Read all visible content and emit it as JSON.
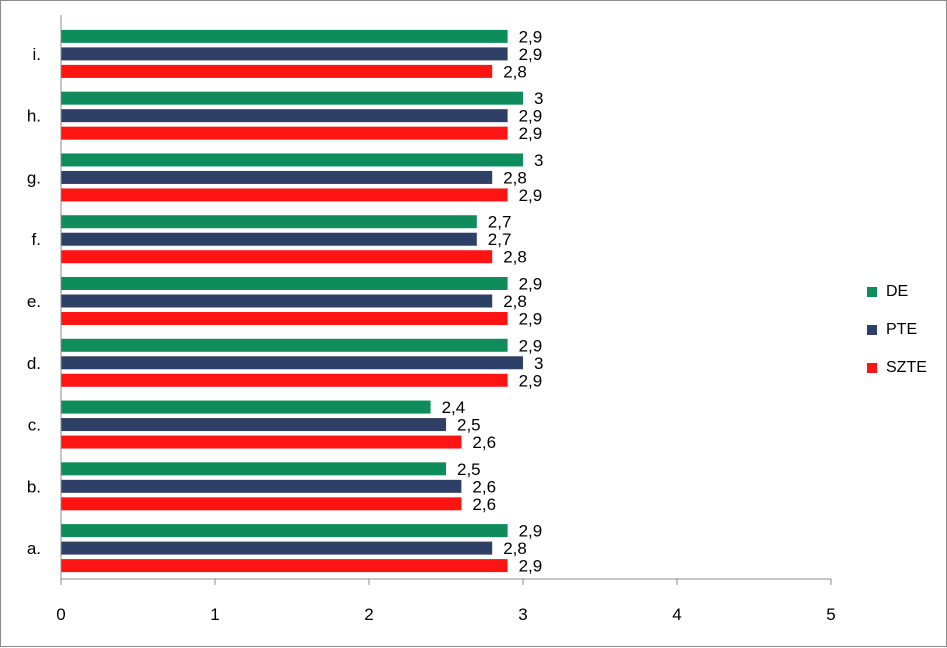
{
  "chart_data": {
    "type": "bar",
    "orientation": "horizontal",
    "categories": [
      "a.",
      "b.",
      "c.",
      "d.",
      "e.",
      "f.",
      "g.",
      "h.",
      "i."
    ],
    "series": [
      {
        "name": "DE",
        "color": "#0e8c5c",
        "values": [
          2.9,
          2.5,
          2.4,
          2.9,
          2.9,
          2.7,
          3,
          3,
          2.9
        ],
        "labels": [
          "2,9",
          "2,5",
          "2,4",
          "2,9",
          "2,9",
          "2,7",
          "3",
          "3",
          "2,9"
        ]
      },
      {
        "name": "PTE",
        "color": "#2f4067",
        "values": [
          2.8,
          2.6,
          2.5,
          3,
          2.8,
          2.7,
          2.8,
          2.9,
          2.9
        ],
        "labels": [
          "2,8",
          "2,6",
          "2,5",
          "3",
          "2,8",
          "2,7",
          "2,8",
          "2,9",
          "2,9"
        ]
      },
      {
        "name": "SZTE",
        "color": "#ff1414",
        "values": [
          2.9,
          2.6,
          2.6,
          2.9,
          2.9,
          2.8,
          2.9,
          2.9,
          2.8
        ],
        "labels": [
          "2,9",
          "2,6",
          "2,6",
          "2,9",
          "2,9",
          "2,8",
          "2,9",
          "2,9",
          "2,8"
        ]
      }
    ],
    "xlim": [
      0,
      5
    ],
    "xticks": [
      0,
      1,
      2,
      3,
      4,
      5
    ],
    "title": "",
    "xlabel": "",
    "ylabel": "",
    "grid": false,
    "legend_position": "right"
  }
}
